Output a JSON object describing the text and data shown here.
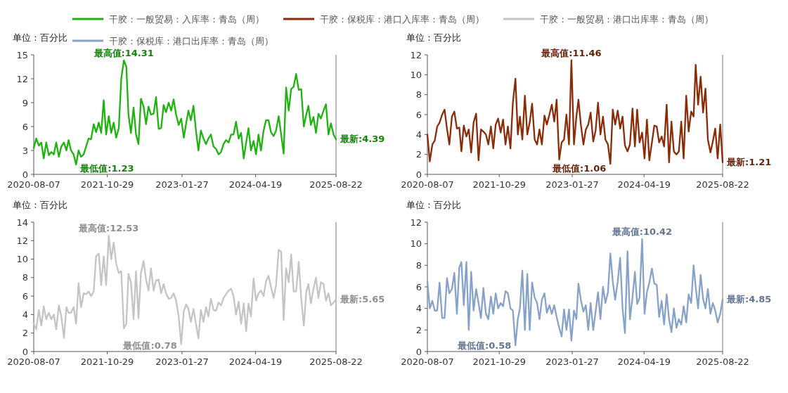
{
  "chart_data": [
    {
      "type": "line",
      "ylabel": "单位：百分比",
      "legend": "top",
      "marker": "none",
      "line_style": "solid",
      "grid": false,
      "xlim": [
        "2020-08-07",
        "2025-08-22"
      ],
      "xticks": [
        {
          "value": "2020-08-07",
          "label": "2020-08-07"
        },
        {
          "value": "2021-10-29",
          "label": "2021-10-29"
        },
        {
          "value": "2023-01-27",
          "label": "2023-01-27"
        },
        {
          "value": "2024-04-19",
          "label": "2024-04-19"
        },
        {
          "value": "2025-08-22",
          "label": "2025-08-22"
        }
      ],
      "ylim": [
        0,
        15
      ],
      "yticks": [
        0,
        3,
        6,
        9,
        12,
        15
      ],
      "x": [
        "2020-08-07",
        "2020-08-22",
        "2020-09-07",
        "2020-09-22",
        "2020-10-07",
        "2020-10-22",
        "2020-11-07",
        "2020-11-22",
        "2020-12-07",
        "2020-12-22",
        "2021-01-07",
        "2021-01-22",
        "2021-02-07",
        "2021-02-22",
        "2021-03-07",
        "2021-03-22",
        "2021-04-07",
        "2021-04-22",
        "2021-05-07",
        "2021-05-22",
        "2021-06-07",
        "2021-06-22",
        "2021-07-07",
        "2021-07-22",
        "2021-08-07",
        "2021-08-22",
        "2021-09-07",
        "2021-09-22",
        "2021-10-07",
        "2021-10-22",
        "2021-11-07",
        "2021-11-22",
        "2021-12-07",
        "2021-12-22",
        "2022-01-07",
        "2022-01-22",
        "2022-02-07",
        "2022-02-22",
        "2022-03-07",
        "2022-03-22",
        "2022-04-07",
        "2022-04-22",
        "2022-05-07",
        "2022-05-22",
        "2022-06-07",
        "2022-06-22",
        "2022-07-07",
        "2022-07-22",
        "2022-08-07",
        "2022-08-22",
        "2022-09-07",
        "2022-09-22",
        "2022-10-07",
        "2022-10-22",
        "2022-11-07",
        "2022-11-22",
        "2022-12-07",
        "2022-12-22",
        "2023-01-07",
        "2023-01-22",
        "2023-02-07",
        "2023-02-22",
        "2023-03-07",
        "2023-03-22",
        "2023-04-07",
        "2023-04-22",
        "2023-05-07",
        "2023-05-22",
        "2023-06-07",
        "2023-06-22",
        "2023-07-07",
        "2023-07-22",
        "2023-08-07",
        "2023-08-22",
        "2023-09-07",
        "2023-09-22",
        "2023-10-07",
        "2023-10-22",
        "2023-11-07",
        "2023-11-22",
        "2023-12-07",
        "2023-12-22",
        "2024-01-07",
        "2024-01-22",
        "2024-02-07",
        "2024-02-22",
        "2024-03-07",
        "2024-03-22",
        "2024-04-07",
        "2024-04-22",
        "2024-05-07",
        "2024-05-22",
        "2024-06-07",
        "2024-06-22",
        "2024-07-07",
        "2024-07-22",
        "2024-08-07",
        "2024-08-22",
        "2024-09-07",
        "2024-09-22",
        "2024-10-07",
        "2024-10-22",
        "2024-11-07",
        "2024-11-22",
        "2024-12-07",
        "2024-12-22",
        "2025-01-07",
        "2025-01-22",
        "2025-02-07",
        "2025-02-22",
        "2025-03-07",
        "2025-03-22",
        "2025-04-07",
        "2025-04-22",
        "2025-05-07",
        "2025-05-22",
        "2025-06-07",
        "2025-06-22",
        "2025-07-07",
        "2025-07-22",
        "2025-08-07",
        "2025-08-22"
      ],
      "series": [
        {
          "name": "干胶：一般贸易：入库率：青岛（周）",
          "color": "#1db30f",
          "values": [
            3.3,
            4.5,
            3.6,
            4.0,
            2.0,
            4.0,
            2.4,
            2.8,
            2.5,
            4.0,
            2.2,
            3.5,
            4.0,
            3.0,
            4.3,
            3.0,
            2.5,
            1.23,
            3.0,
            2.2,
            2.5,
            3.5,
            4.5,
            4.4,
            6.3,
            5.3,
            6.5,
            5.2,
            9.3,
            5.0,
            7.3,
            5.2,
            6.5,
            4.6,
            5.8,
            12.0,
            14.31,
            13.5,
            7.5,
            5.2,
            8.4,
            5.0,
            3.8,
            9.5,
            8.5,
            6.3,
            8.5,
            7.5,
            7.6,
            9.7,
            5.7,
            5.8,
            8.7,
            7.8,
            9.0,
            8.0,
            9.4,
            7.5,
            6.2,
            7.0,
            4.6,
            6.5,
            8.0,
            6.8,
            8.6,
            5.5,
            3.0,
            5.5,
            4.5,
            3.8,
            4.5,
            5.0,
            3.5,
            3.2,
            2.5,
            2.8,
            3.8,
            4.3,
            4.0,
            5.0,
            5.0,
            6.6,
            4.5,
            5.2,
            2.0,
            4.0,
            5.8,
            3.0,
            4.2,
            2.5,
            5.0,
            3.0,
            5.5,
            6.8,
            6.8,
            5.3,
            4.8,
            5.5,
            7.3,
            5.0,
            2.6,
            10.9,
            8.0,
            10.7,
            11.0,
            12.6,
            10.6,
            10.7,
            6.0,
            7.5,
            8.6,
            6.2,
            7.2,
            5.2,
            7.6,
            7.0,
            8.0,
            8.8,
            5.0,
            6.4,
            5.0,
            4.39
          ]
        }
      ],
      "annotations": [
        {
          "text": "最高值:14.31",
          "x": "2022-02-07",
          "y": 14.31
        },
        {
          "text": "最低值:1.23",
          "x": "2021-04-22",
          "y": 1.23
        },
        {
          "text": "最新:4.39",
          "x": "2025-08-22",
          "y": 4.39
        }
      ]
    },
    {
      "type": "line",
      "ylabel": "单位：百分比",
      "legend": "top",
      "marker": "none",
      "line_style": "solid",
      "grid": false,
      "xlim": [
        "2020-08-07",
        "2025-08-22"
      ],
      "xticks": [
        {
          "value": "2020-08-07",
          "label": "2020-08-07"
        },
        {
          "value": "2021-10-29",
          "label": "2021-10-29"
        },
        {
          "value": "2023-01-27",
          "label": "2023-01-27"
        },
        {
          "value": "2024-04-19",
          "label": "2024-04-19"
        },
        {
          "value": "2025-08-22",
          "label": "2025-08-22"
        }
      ],
      "ylim": [
        0,
        12
      ],
      "yticks": [
        0,
        2,
        4,
        6,
        8,
        10,
        12
      ],
      "x": [
        "2020-08-07",
        "2020-08-22",
        "2020-09-07",
        "2020-09-22",
        "2020-10-07",
        "2020-10-22",
        "2020-11-07",
        "2020-11-22",
        "2020-12-07",
        "2020-12-22",
        "2021-01-07",
        "2021-01-22",
        "2021-02-07",
        "2021-02-22",
        "2021-03-07",
        "2021-03-22",
        "2021-04-07",
        "2021-04-22",
        "2021-05-07",
        "2021-05-22",
        "2021-06-07",
        "2021-06-22",
        "2021-07-07",
        "2021-07-22",
        "2021-08-07",
        "2021-08-22",
        "2021-09-07",
        "2021-09-22",
        "2021-10-07",
        "2021-10-22",
        "2021-11-07",
        "2021-11-22",
        "2021-12-07",
        "2021-12-22",
        "2022-01-07",
        "2022-01-22",
        "2022-02-07",
        "2022-02-22",
        "2022-03-07",
        "2022-03-22",
        "2022-04-07",
        "2022-04-22",
        "2022-05-07",
        "2022-05-22",
        "2022-06-07",
        "2022-06-22",
        "2022-07-07",
        "2022-07-22",
        "2022-08-07",
        "2022-08-22",
        "2022-09-07",
        "2022-09-22",
        "2022-10-07",
        "2022-10-22",
        "2022-11-07",
        "2022-11-22",
        "2022-12-07",
        "2022-12-22",
        "2023-01-07",
        "2023-01-22",
        "2023-02-07",
        "2023-02-22",
        "2023-03-07",
        "2023-03-22",
        "2023-04-07",
        "2023-04-22",
        "2023-05-07",
        "2023-05-22",
        "2023-06-07",
        "2023-06-22",
        "2023-07-07",
        "2023-07-22",
        "2023-08-07",
        "2023-08-22",
        "2023-09-07",
        "2023-09-22",
        "2023-10-07",
        "2023-10-22",
        "2023-11-07",
        "2023-11-22",
        "2023-12-07",
        "2023-12-22",
        "2024-01-07",
        "2024-01-22",
        "2024-02-07",
        "2024-02-22",
        "2024-03-07",
        "2024-03-22",
        "2024-04-07",
        "2024-04-22",
        "2024-05-07",
        "2024-05-22",
        "2024-06-07",
        "2024-06-22",
        "2024-07-07",
        "2024-07-22",
        "2024-08-07",
        "2024-08-22",
        "2024-09-07",
        "2024-09-22",
        "2024-10-07",
        "2024-10-22",
        "2024-11-07",
        "2024-11-22",
        "2024-12-07",
        "2024-12-22",
        "2025-01-07",
        "2025-01-22",
        "2025-02-07",
        "2025-02-22",
        "2025-03-07",
        "2025-03-22",
        "2025-04-07",
        "2025-04-22",
        "2025-05-07",
        "2025-05-22",
        "2025-06-07",
        "2025-06-22",
        "2025-07-07",
        "2025-07-22",
        "2025-08-07",
        "2025-08-22"
      ],
      "series": [
        {
          "name": "干胶：保税库：港口入库率：青岛（周）",
          "color": "#8b2b08",
          "values": [
            4.0,
            1.3,
            3.0,
            3.4,
            4.8,
            5.2,
            6.0,
            6.5,
            4.6,
            3.0,
            5.8,
            6.3,
            4.6,
            4.7,
            2.3,
            4.9,
            3.8,
            4.5,
            2.2,
            5.2,
            6.1,
            1.4,
            4.5,
            4.3,
            4.0,
            3.0,
            4.8,
            2.6,
            5.0,
            5.6,
            4.2,
            5.5,
            3.0,
            4.8,
            2.6,
            7.2,
            9.6,
            4.0,
            5.8,
            3.5,
            7.9,
            4.0,
            5.2,
            7.1,
            3.5,
            3.0,
            4.5,
            3.0,
            5.9,
            5.0,
            6.0,
            7.0,
            5.3,
            7.5,
            1.5,
            3.2,
            3.5,
            6.0,
            3.0,
            11.46,
            3.0,
            5.8,
            7.5,
            5.0,
            3.0,
            4.5,
            5.0,
            6.2,
            3.3,
            4.4,
            7.2,
            4.0,
            5.8,
            3.5,
            3.0,
            1.06,
            6.5,
            5.0,
            6.4,
            4.6,
            5.8,
            2.9,
            2.3,
            3.0,
            6.6,
            2.8,
            6.5,
            3.2,
            4.2,
            1.6,
            5.5,
            1.4,
            3.2,
            4.9,
            4.8,
            3.2,
            3.8,
            2.8,
            7.0,
            1.2,
            5.3,
            2.3,
            2.0,
            2.3,
            5.3,
            1.6,
            7.9,
            4.3,
            6.3,
            5.8,
            11.0,
            7.0,
            9.8,
            6.2,
            8.6,
            3.5,
            2.2,
            3.3,
            4.6,
            1.6,
            5.0,
            1.21
          ]
        }
      ],
      "annotations": [
        {
          "text": "最高值:11.46",
          "x": "2023-01-22",
          "y": 11.46
        },
        {
          "text": "最低值:1.06",
          "x": "2023-09-22",
          "y": 1.06
        },
        {
          "text": "最新:1.21",
          "x": "2025-08-22",
          "y": 1.21
        }
      ]
    },
    {
      "type": "line",
      "ylabel": "单位：百分比",
      "legend": "top",
      "marker": "none",
      "line_style": "solid",
      "grid": false,
      "xlim": [
        "2020-08-07",
        "2025-08-22"
      ],
      "xticks": [
        {
          "value": "2020-08-07",
          "label": "2020-08-07"
        },
        {
          "value": "2021-10-29",
          "label": "2021-10-29"
        },
        {
          "value": "2023-01-27",
          "label": "2023-01-27"
        },
        {
          "value": "2024-04-19",
          "label": "2024-04-19"
        },
        {
          "value": "2025-08-22",
          "label": "2025-08-22"
        }
      ],
      "ylim": [
        0,
        14
      ],
      "yticks": [
        0,
        2,
        4,
        6,
        8,
        10,
        12,
        14
      ],
      "x": [
        "2020-08-07",
        "2020-08-22",
        "2020-09-07",
        "2020-09-22",
        "2020-10-07",
        "2020-10-22",
        "2020-11-07",
        "2020-11-22",
        "2020-12-07",
        "2020-12-22",
        "2021-01-07",
        "2021-01-22",
        "2021-02-07",
        "2021-02-22",
        "2021-03-07",
        "2021-03-22",
        "2021-04-07",
        "2021-04-22",
        "2021-05-07",
        "2021-05-22",
        "2021-06-07",
        "2021-06-22",
        "2021-07-07",
        "2021-07-22",
        "2021-08-07",
        "2021-08-22",
        "2021-09-07",
        "2021-09-22",
        "2021-10-07",
        "2021-10-22",
        "2021-11-07",
        "2021-11-22",
        "2021-12-07",
        "2021-12-22",
        "2022-01-07",
        "2022-01-22",
        "2022-02-07",
        "2022-02-22",
        "2022-03-07",
        "2022-03-22",
        "2022-04-07",
        "2022-04-22",
        "2022-05-07",
        "2022-05-22",
        "2022-06-07",
        "2022-06-22",
        "2022-07-07",
        "2022-07-22",
        "2022-08-07",
        "2022-08-22",
        "2022-09-07",
        "2022-09-22",
        "2022-10-07",
        "2022-10-22",
        "2022-11-07",
        "2022-11-22",
        "2022-12-07",
        "2022-12-22",
        "2023-01-07",
        "2023-01-22",
        "2023-02-07",
        "2023-02-22",
        "2023-03-07",
        "2023-03-22",
        "2023-04-07",
        "2023-04-22",
        "2023-05-07",
        "2023-05-22",
        "2023-06-07",
        "2023-06-22",
        "2023-07-07",
        "2023-07-22",
        "2023-08-07",
        "2023-08-22",
        "2023-09-07",
        "2023-09-22",
        "2023-10-07",
        "2023-10-22",
        "2023-11-07",
        "2023-11-22",
        "2023-12-07",
        "2023-12-22",
        "2024-01-07",
        "2024-01-22",
        "2024-02-07",
        "2024-02-22",
        "2024-03-07",
        "2024-03-22",
        "2024-04-07",
        "2024-04-22",
        "2024-05-07",
        "2024-05-22",
        "2024-06-07",
        "2024-06-22",
        "2024-07-07",
        "2024-07-22",
        "2024-08-07",
        "2024-08-22",
        "2024-09-07",
        "2024-09-22",
        "2024-10-07",
        "2024-10-22",
        "2024-11-07",
        "2024-11-22",
        "2024-12-07",
        "2024-12-22",
        "2025-01-07",
        "2025-01-22",
        "2025-02-07",
        "2025-02-22",
        "2025-03-07",
        "2025-03-22",
        "2025-04-07",
        "2025-04-22",
        "2025-05-07",
        "2025-05-22",
        "2025-06-07",
        "2025-06-22",
        "2025-07-07",
        "2025-07-22",
        "2025-08-07",
        "2025-08-22"
      ],
      "series": [
        {
          "name": "干胶：一般贸易：港口出库率：青岛（周）",
          "color": "#c4c4c4",
          "values": [
            3.0,
            2.4,
            4.5,
            2.8,
            4.9,
            3.5,
            4.2,
            3.5,
            4.0,
            2.4,
            5.0,
            3.8,
            1.5,
            4.8,
            4.2,
            4.2,
            4.8,
            3.0,
            7.4,
            4.8,
            6.3,
            6.2,
            6.5,
            6.0,
            6.5,
            10.3,
            10.6,
            7.2,
            10.3,
            7.2,
            12.53,
            10.0,
            11.8,
            9.5,
            8.5,
            8.7,
            2.5,
            3.0,
            8.4,
            7.5,
            3.5,
            8.7,
            3.6,
            8.5,
            9.8,
            7.8,
            6.6,
            9.0,
            6.6,
            7.7,
            7.8,
            6.3,
            7.3,
            6.3,
            5.7,
            5.8,
            6.3,
            5.5,
            3.8,
            0.78,
            4.4,
            5.1,
            4.6,
            3.2,
            4.6,
            3.0,
            1.4,
            4.5,
            3.2,
            4.8,
            3.8,
            5.7,
            4.5,
            4.4,
            5.3,
            5.0,
            5.8,
            6.2,
            6.6,
            6.8,
            6.0,
            4.0,
            5.4,
            3.0,
            5.2,
            2.2,
            5.2,
            3.8,
            7.9,
            5.5,
            6.3,
            6.6,
            6.0,
            7.6,
            8.2,
            7.0,
            5.8,
            7.2,
            11.0,
            10.8,
            3.4,
            9.0,
            7.5,
            10.5,
            6.5,
            6.5,
            9.7,
            5.8,
            2.8,
            6.5,
            7.3,
            5.2,
            6.8,
            8.0,
            5.8,
            7.5,
            7.3,
            5.5,
            6.3,
            5.0,
            5.3,
            5.65
          ]
        }
      ],
      "annotations": [
        {
          "text": "最高值:12.53",
          "x": "2021-11-07",
          "y": 12.53
        },
        {
          "text": "最低值:0.78",
          "x": "2023-01-22",
          "y": 0.78
        },
        {
          "text": "最新:5.65",
          "x": "2025-08-22",
          "y": 5.65
        }
      ]
    },
    {
      "type": "line",
      "ylabel": "单位：百分比",
      "legend": "top",
      "marker": "none",
      "line_style": "solid",
      "grid": false,
      "xlim": [
        "2020-08-07",
        "2025-08-22"
      ],
      "xticks": [
        {
          "value": "2020-08-07",
          "label": "2020-08-07"
        },
        {
          "value": "2021-10-29",
          "label": "2021-10-29"
        },
        {
          "value": "2023-01-27",
          "label": "2023-01-27"
        },
        {
          "value": "2024-04-19",
          "label": "2024-04-19"
        },
        {
          "value": "2025-08-22",
          "label": "2025-08-22"
        }
      ],
      "ylim": [
        0,
        12
      ],
      "yticks": [
        0,
        2,
        4,
        6,
        8,
        10,
        12
      ],
      "x": [
        "2020-08-07",
        "2020-08-22",
        "2020-09-07",
        "2020-09-22",
        "2020-10-07",
        "2020-10-22",
        "2020-11-07",
        "2020-11-22",
        "2020-12-07",
        "2020-12-22",
        "2021-01-07",
        "2021-01-22",
        "2021-02-07",
        "2021-02-22",
        "2021-03-07",
        "2021-03-22",
        "2021-04-07",
        "2021-04-22",
        "2021-05-07",
        "2021-05-22",
        "2021-06-07",
        "2021-06-22",
        "2021-07-07",
        "2021-07-22",
        "2021-08-07",
        "2021-08-22",
        "2021-09-07",
        "2021-09-22",
        "2021-10-07",
        "2021-10-22",
        "2021-11-07",
        "2021-11-22",
        "2021-12-07",
        "2021-12-22",
        "2022-01-07",
        "2022-01-22",
        "2022-02-07",
        "2022-02-22",
        "2022-03-07",
        "2022-03-22",
        "2022-04-07",
        "2022-04-22",
        "2022-05-07",
        "2022-05-22",
        "2022-06-07",
        "2022-06-22",
        "2022-07-07",
        "2022-07-22",
        "2022-08-07",
        "2022-08-22",
        "2022-09-07",
        "2022-09-22",
        "2022-10-07",
        "2022-10-22",
        "2022-11-07",
        "2022-11-22",
        "2022-12-07",
        "2022-12-22",
        "2023-01-07",
        "2023-01-22",
        "2023-02-07",
        "2023-02-22",
        "2023-03-07",
        "2023-03-22",
        "2023-04-07",
        "2023-04-22",
        "2023-05-07",
        "2023-05-22",
        "2023-06-07",
        "2023-06-22",
        "2023-07-07",
        "2023-07-22",
        "2023-08-07",
        "2023-08-22",
        "2023-09-07",
        "2023-09-22",
        "2023-10-07",
        "2023-10-22",
        "2023-11-07",
        "2023-11-22",
        "2023-12-07",
        "2023-12-22",
        "2024-01-07",
        "2024-01-22",
        "2024-02-07",
        "2024-02-22",
        "2024-03-07",
        "2024-03-22",
        "2024-04-07",
        "2024-04-22",
        "2024-05-07",
        "2024-05-22",
        "2024-06-07",
        "2024-06-22",
        "2024-07-07",
        "2024-07-22",
        "2024-08-07",
        "2024-08-22",
        "2024-09-07",
        "2024-09-22",
        "2024-10-07",
        "2024-10-22",
        "2024-11-07",
        "2024-11-22",
        "2024-12-07",
        "2024-12-22",
        "2025-01-07",
        "2025-01-22",
        "2025-02-07",
        "2025-02-22",
        "2025-03-07",
        "2025-03-22",
        "2025-04-07",
        "2025-04-22",
        "2025-05-07",
        "2025-05-22",
        "2025-06-07",
        "2025-06-22",
        "2025-07-07",
        "2025-07-22",
        "2025-08-07",
        "2025-08-22"
      ],
      "series": [
        {
          "name": "干胶：保税库：港口出库率：青岛（周）",
          "color": "#87a2c8",
          "values": [
            6.5,
            4.0,
            4.7,
            3.8,
            3.8,
            6.4,
            3.1,
            3.1,
            6.8,
            5.4,
            5.8,
            7.3,
            3.5,
            7.8,
            8.3,
            4.3,
            8.3,
            2.0,
            7.4,
            3.8,
            5.8,
            4.5,
            3.1,
            5.9,
            3.5,
            3.0,
            5.1,
            3.5,
            5.4,
            4.0,
            4.5,
            4.2,
            5.6,
            5.4,
            4.0,
            3.8,
            0.58,
            3.0,
            4.0,
            7.5,
            2.0,
            7.2,
            2.0,
            6.4,
            5.0,
            4.5,
            3.0,
            4.8,
            5.4,
            3.6,
            4.3,
            3.5,
            4.3,
            3.2,
            2.2,
            1.4,
            3.9,
            2.0,
            3.9,
            1.0,
            3.8,
            3.0,
            6.3,
            4.8,
            3.7,
            4.3,
            2.0,
            4.5,
            2.0,
            3.7,
            5.5,
            3.0,
            6.0,
            4.5,
            5.5,
            9.1,
            6.5,
            4.8,
            6.5,
            8.7,
            4.0,
            1.7,
            9.3,
            3.0,
            5.0,
            7.4,
            4.4,
            5.0,
            10.42,
            3.5,
            5.5,
            6.4,
            7.7,
            6.3,
            6.2,
            3.2,
            4.7,
            2.5,
            5.3,
            3.0,
            1.8,
            4.0,
            2.2,
            3.0,
            2.5,
            4.2,
            2.7,
            5.3,
            4.5,
            8.0,
            6.0,
            4.0,
            7.1,
            4.9,
            4.0,
            5.8,
            3.5,
            4.5,
            3.8,
            2.7,
            3.5,
            4.85
          ]
        }
      ],
      "annotations": [
        {
          "text": "最高值:10.42",
          "x": "2024-04-07",
          "y": 10.42
        },
        {
          "text": "最低值:0.58",
          "x": "2022-02-07",
          "y": 0.58
        },
        {
          "text": "最新:4.85",
          "x": "2025-08-22",
          "y": 4.85
        }
      ]
    }
  ]
}
